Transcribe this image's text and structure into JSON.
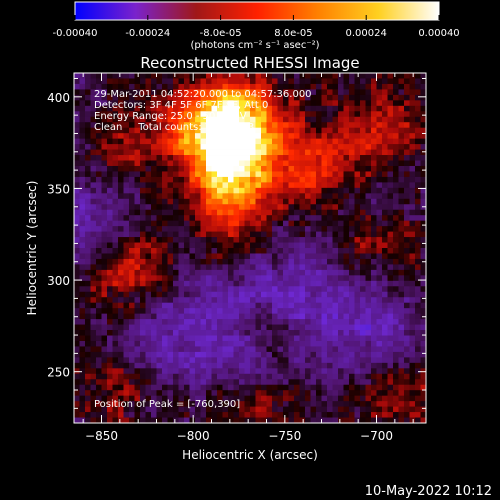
{
  "chart_data": {
    "type": "heatmap",
    "title": "Reconstructed RHESSI Image",
    "xlabel": "Heliocentric X (arcsec)",
    "ylabel": "Heliocentric Y (arcsec)",
    "xlim": [
      -865,
      -673
    ],
    "ylim": [
      222,
      413
    ],
    "xticks": [
      -850,
      -800,
      -750,
      -700
    ],
    "yticks": [
      250,
      300,
      350,
      400
    ],
    "colorbar": {
      "ticks": [
        "-0.00040",
        "-0.00024",
        "-8.0e-05",
        "8.0e-05",
        "0.00024",
        "0.00040"
      ],
      "tick_values": [
        -0.0004,
        -0.00024,
        -8e-05,
        8e-05,
        0.00024,
        0.0004
      ],
      "range": [
        -0.0004,
        0.0004
      ],
      "units": "(photons cm⁻² s⁻¹ asec⁻²)",
      "colors": [
        "#0000ff",
        "#7a22cc",
        "#a01818",
        "#ff2000",
        "#ff8000",
        "#ffd020",
        "#ffffff"
      ]
    },
    "annotations": [
      "29-Mar-2011 04:52:20.000 to 04:57:36.000",
      "Detectors: 3F 4F 5F 6F 7F 8F, Att 0",
      "Energy Range: 25.0 - 50.0 keV",
      "Clean     Total counts: 7.17e+03",
      "Position of Peak = [-760,390]"
    ],
    "peak_position": [
      -760,
      390
    ],
    "peak_value": 0.0004,
    "blobs": [
      {
        "x": -780,
        "y": 360,
        "sx": 14,
        "sy": 28,
        "amp": 0.00034
      },
      {
        "x": -775,
        "y": 385,
        "sx": 18,
        "sy": 18,
        "amp": 0.00026
      },
      {
        "x": -800,
        "y": 380,
        "sx": 18,
        "sy": 14,
        "amp": 0.00018
      },
      {
        "x": -740,
        "y": 360,
        "sx": 20,
        "sy": 16,
        "amp": 0.00016
      },
      {
        "x": -700,
        "y": 380,
        "sx": 18,
        "sy": 18,
        "amp": 0.00014
      },
      {
        "x": -840,
        "y": 370,
        "sx": 14,
        "sy": 12,
        "amp": 0.00013
      },
      {
        "x": -840,
        "y": 300,
        "sx": 14,
        "sy": 12,
        "amp": 0.00014
      },
      {
        "x": -820,
        "y": 310,
        "sx": 16,
        "sy": 14,
        "amp": 0.0001
      },
      {
        "x": -700,
        "y": 320,
        "sx": 16,
        "sy": 16,
        "amp": 0.00012
      },
      {
        "x": -690,
        "y": 240,
        "sx": 18,
        "sy": 14,
        "amp": 0.00013
      },
      {
        "x": -840,
        "y": 240,
        "sx": 16,
        "sy": 14,
        "amp": 0.0001
      },
      {
        "x": -770,
        "y": 230,
        "sx": 18,
        "sy": 10,
        "amp": 0.0001
      },
      {
        "x": -760,
        "y": 275,
        "sx": 12,
        "sy": 10,
        "amp": 8e-05
      },
      {
        "x": -800,
        "y": 275,
        "sx": 26,
        "sy": 26,
        "amp": -0.00014
      },
      {
        "x": -740,
        "y": 290,
        "sx": 26,
        "sy": 22,
        "amp": -0.00012
      },
      {
        "x": -700,
        "y": 270,
        "sx": 18,
        "sy": 24,
        "amp": -0.00011
      },
      {
        "x": -855,
        "y": 340,
        "sx": 16,
        "sy": 20,
        "amp": -0.0001
      },
      {
        "x": -700,
        "y": 345,
        "sx": 14,
        "sy": 12,
        "amp": -9e-05
      }
    ]
  },
  "footer": {
    "date": "10-May-2022 10:12"
  }
}
